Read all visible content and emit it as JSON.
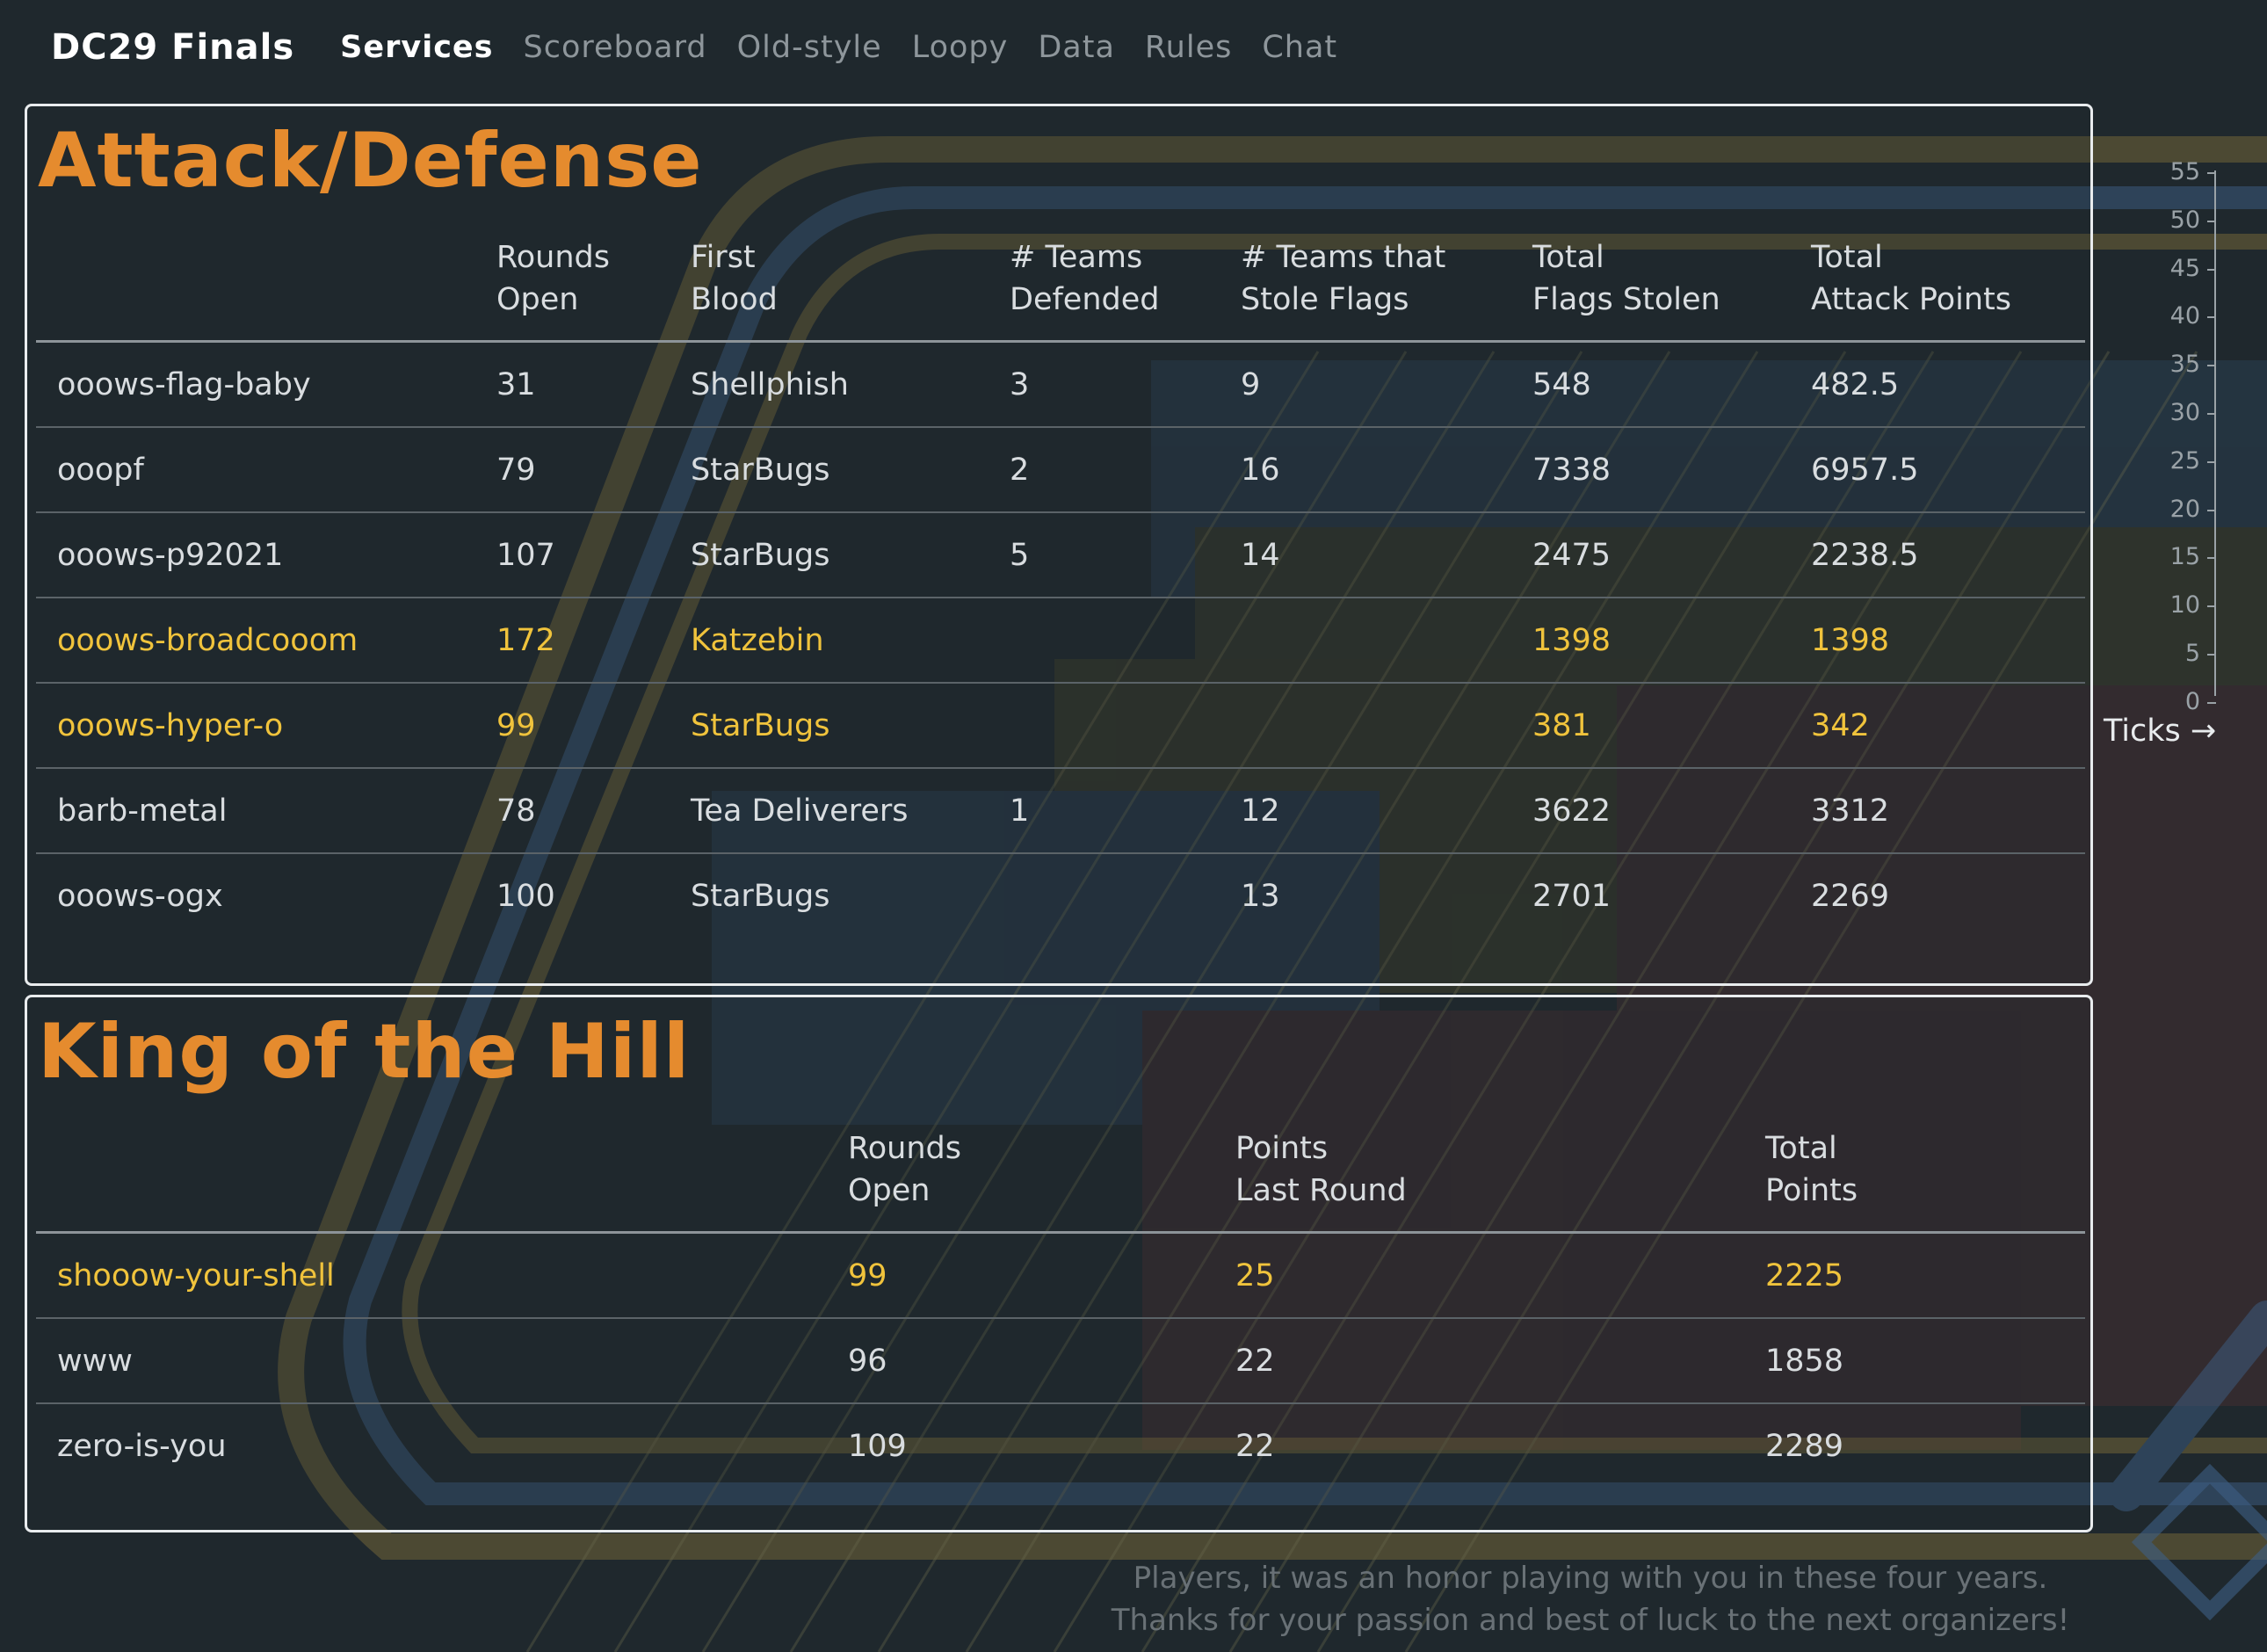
{
  "nav": {
    "brand": "DC29 Finals",
    "links": [
      {
        "label": "Services",
        "active": true
      },
      {
        "label": "Scoreboard"
      },
      {
        "label": "Old-style"
      },
      {
        "label": "Loopy"
      },
      {
        "label": "Data"
      },
      {
        "label": "Rules"
      },
      {
        "label": "Chat"
      }
    ]
  },
  "attack_defense": {
    "title": "Attack/Defense",
    "headers": {
      "rounds_open": [
        "Rounds",
        "Open"
      ],
      "first_blood": [
        "First",
        "Blood"
      ],
      "teams_defended": [
        "# Teams",
        "Defended"
      ],
      "teams_stole": [
        "# Teams that",
        "Stole Flags"
      ],
      "flags_stolen": [
        "Total",
        "Flags Stolen"
      ],
      "attack_points": [
        "Total",
        "Attack Points"
      ]
    },
    "rows": [
      {
        "service": "ooows-flag-baby",
        "rounds_open": "31",
        "first_blood": "Shellphish",
        "teams_defended": "3",
        "teams_stole": "9",
        "flags_stolen": "548",
        "attack_points": "482.5"
      },
      {
        "service": "ooopf",
        "rounds_open": "79",
        "first_blood": "StarBugs",
        "teams_defended": "2",
        "teams_stole": "16",
        "flags_stolen": "7338",
        "attack_points": "6957.5"
      },
      {
        "service": "ooows-p92021",
        "rounds_open": "107",
        "first_blood": "StarBugs",
        "teams_defended": "5",
        "teams_stole": "14",
        "flags_stolen": "2475",
        "attack_points": "2238.5"
      },
      {
        "service": "ooows-broadcooom",
        "rounds_open": "172",
        "first_blood": "Katzebin",
        "teams_defended": "",
        "teams_stole": "",
        "flags_stolen": "1398",
        "attack_points": "1398",
        "highlight": true
      },
      {
        "service": "ooows-hyper-o",
        "rounds_open": "99",
        "first_blood": "StarBugs",
        "teams_defended": "",
        "teams_stole": "",
        "flags_stolen": "381",
        "attack_points": "342",
        "highlight": true
      },
      {
        "service": "barb-metal",
        "rounds_open": "78",
        "first_blood": "Tea Deliverers",
        "teams_defended": "1",
        "teams_stole": "12",
        "flags_stolen": "3622",
        "attack_points": "3312"
      },
      {
        "service": "ooows-ogx",
        "rounds_open": "100",
        "first_blood": "StarBugs",
        "teams_defended": "",
        "teams_stole": "13",
        "flags_stolen": "2701",
        "attack_points": "2269"
      }
    ]
  },
  "king_of_the_hill": {
    "title": "King of the Hill",
    "headers": {
      "rounds_open": [
        "Rounds",
        "Open"
      ],
      "points_last": [
        "Points",
        "Last Round"
      ],
      "total_points": [
        "Total",
        "Points"
      ]
    },
    "rows": [
      {
        "service": "shooow-your-shell",
        "rounds_open": "99",
        "points_last": "25",
        "total_points": "2225",
        "highlight": true
      },
      {
        "service": "www",
        "rounds_open": "96",
        "points_last": "22",
        "total_points": "1858"
      },
      {
        "service": "zero-is-you",
        "rounds_open": "109",
        "points_last": "22",
        "total_points": "2289"
      }
    ]
  },
  "axis": {
    "ticks": [
      "55",
      "50",
      "45",
      "40",
      "35",
      "30",
      "25",
      "20",
      "15",
      "10",
      "5",
      "0"
    ],
    "label": "Ticks →"
  },
  "footer": {
    "line1": "Players, it was an honor playing with you in these four years.",
    "line2": "Thanks for your passion and best of luck to the next organizers!"
  },
  "colors": {
    "accent": "#e58b2e",
    "highlight": "#f0c33c",
    "background": "#1f282d"
  }
}
